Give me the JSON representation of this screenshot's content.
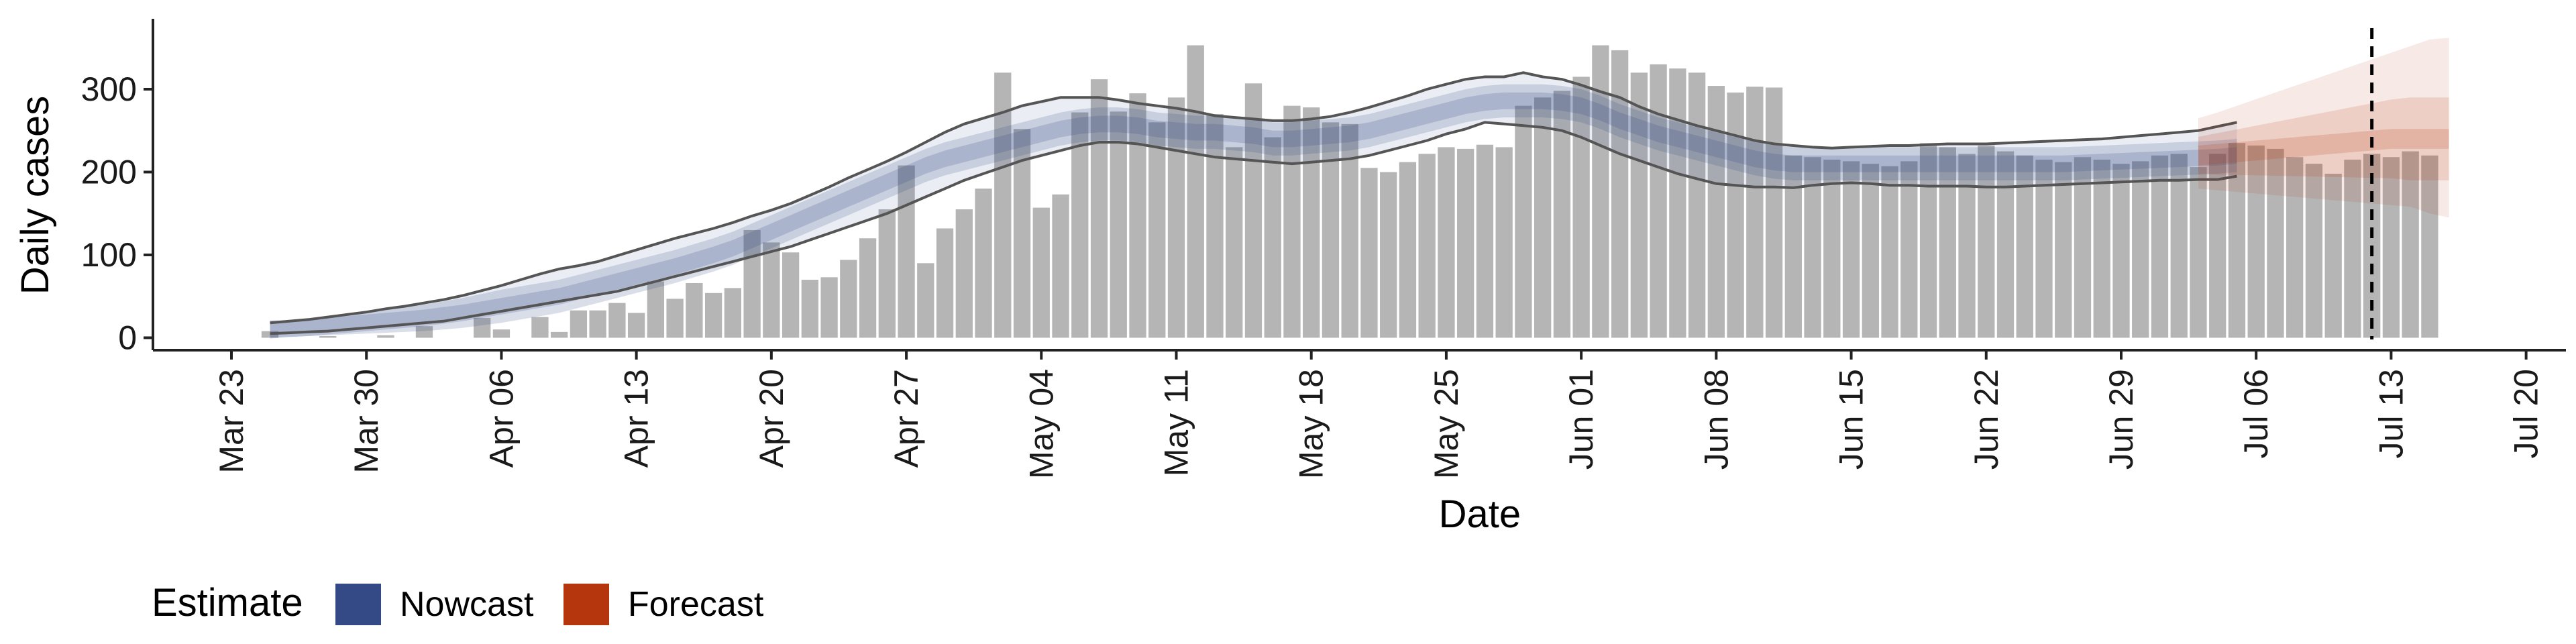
{
  "chart_data": {
    "type": "bar",
    "xlabel": "Date",
    "ylabel": "Daily cases",
    "x_axis": {
      "ticks": [
        "Mar 23",
        "Mar 30",
        "Apr 06",
        "Apr 13",
        "Apr 20",
        "Apr 27",
        "May 04",
        "May 11",
        "May 18",
        "May 25",
        "Jun 01",
        "Jun 08",
        "Jun 15",
        "Jun 22",
        "Jun 29",
        "Jul 06",
        "Jul 13",
        "Jul 20"
      ],
      "range_days_from_mar23": [
        0,
        120
      ]
    },
    "y_axis": {
      "ticks": [
        0,
        100,
        200,
        300
      ],
      "ylim": [
        -15,
        385
      ]
    },
    "legend": {
      "title": "Estimate",
      "position": "bottom-left",
      "entries": [
        {
          "label": "Nowcast",
          "color": "#334a87"
        },
        {
          "label": "Forecast",
          "color": "#b5350c"
        }
      ]
    },
    "reference_line": {
      "date": "Jul 12",
      "style": "dashed"
    },
    "colors": {
      "bars": "#b5b5b5",
      "nowcast_band": "#334a87",
      "forecast_band": "#b5350c",
      "outer_lines": "#555555",
      "axis": "#222222"
    },
    "observed_cases": {
      "start_date": "Mar 25",
      "values": [
        8,
        0,
        0,
        2,
        0,
        0,
        3,
        0,
        14,
        0,
        0,
        24,
        10,
        0,
        25,
        7,
        33,
        33,
        42,
        30,
        68,
        47,
        66,
        54,
        60,
        130,
        115,
        103,
        70,
        73,
        94,
        120,
        155,
        208,
        90,
        132,
        155,
        180,
        320,
        252,
        157,
        173,
        272,
        312,
        273,
        295,
        260,
        290,
        353,
        270,
        230,
        307,
        242,
        280,
        278,
        260,
        258,
        205,
        200,
        212,
        222,
        230,
        228,
        233,
        230,
        280,
        290,
        298,
        315,
        353,
        347,
        320,
        330,
        325,
        320,
        304,
        296,
        303,
        302,
        220,
        218,
        215,
        213,
        210,
        207,
        213,
        235,
        230,
        222,
        232,
        225,
        220,
        215,
        212,
        218,
        215,
        210,
        213,
        220,
        222,
        206,
        222,
        235,
        232,
        228,
        218,
        210,
        198,
        215,
        222,
        218,
        225,
        220
      ]
    },
    "nowcast": {
      "start_date": "Mar 25",
      "median": [
        10,
        11,
        12,
        14,
        16,
        18,
        20,
        22,
        24,
        27,
        30,
        34,
        38,
        42,
        46,
        50,
        56,
        62,
        68,
        74,
        80,
        86,
        93,
        100,
        108,
        118,
        128,
        138,
        148,
        158,
        168,
        178,
        188,
        198,
        208,
        216,
        222,
        228,
        234,
        240,
        246,
        252,
        256,
        258,
        258,
        256,
        252,
        250,
        248,
        248,
        246,
        244,
        240,
        240,
        242,
        244,
        246,
        250,
        256,
        262,
        268,
        274,
        280,
        284,
        286,
        286,
        286,
        284,
        280,
        272,
        262,
        254,
        246,
        240,
        234,
        228,
        222,
        216,
        212,
        210,
        210,
        210,
        210,
        210,
        210,
        210,
        210,
        210,
        210,
        210,
        210,
        210,
        210,
        210,
        211,
        212,
        213,
        214,
        215,
        216,
        217,
        218,
        220
      ],
      "band50": [
        22,
        20,
        20,
        22,
        24,
        26,
        28,
        30,
        32,
        34,
        36,
        38,
        40,
        40,
        40,
        40,
        40,
        40,
        40,
        40,
        40,
        40,
        40,
        40,
        40,
        40,
        40,
        40,
        40,
        40,
        40,
        40,
        40,
        40,
        40,
        40,
        40,
        40,
        40,
        40,
        40,
        40,
        40,
        40,
        40,
        40,
        40,
        40,
        40,
        40,
        40,
        40,
        40,
        40,
        40,
        40,
        40,
        40,
        40,
        40,
        40,
        40,
        40,
        40,
        40,
        40,
        40,
        40,
        40,
        40,
        40,
        40,
        40,
        40,
        40,
        40,
        40,
        40,
        40,
        40,
        40,
        40,
        40,
        40,
        40,
        40,
        40,
        40,
        40,
        40,
        40,
        40,
        40,
        40,
        40,
        40,
        40,
        40,
        40,
        40,
        40,
        40,
        40
      ],
      "upper90": [
        18,
        20,
        22,
        25,
        28,
        31,
        35,
        38,
        42,
        46,
        51,
        57,
        63,
        70,
        77,
        83,
        87,
        92,
        99,
        106,
        113,
        120,
        126,
        132,
        139,
        147,
        154,
        162,
        172,
        182,
        193,
        203,
        213,
        224,
        236,
        248,
        258,
        265,
        272,
        280,
        285,
        290,
        290,
        290,
        287,
        283,
        280,
        277,
        273,
        268,
        266,
        264,
        262,
        262,
        264,
        267,
        272,
        278,
        285,
        292,
        300,
        306,
        312,
        315,
        315,
        320,
        315,
        312,
        305,
        297,
        290,
        279,
        270,
        263,
        256,
        250,
        244,
        238,
        234,
        232,
        230,
        229,
        230,
        231,
        232,
        232,
        233,
        234,
        234,
        234,
        235,
        236,
        237,
        238,
        239,
        240,
        242,
        244,
        246,
        248,
        250,
        255,
        260
      ],
      "lower90": [
        5,
        6,
        7,
        8,
        10,
        12,
        14,
        16,
        18,
        20,
        24,
        28,
        32,
        36,
        40,
        44,
        48,
        52,
        56,
        62,
        68,
        74,
        80,
        86,
        92,
        98,
        104,
        110,
        118,
        126,
        134,
        142,
        150,
        160,
        170,
        180,
        190,
        198,
        206,
        214,
        220,
        226,
        232,
        236,
        236,
        234,
        230,
        226,
        222,
        218,
        216,
        214,
        212,
        210,
        212,
        214,
        216,
        220,
        226,
        232,
        238,
        246,
        252,
        260,
        258,
        256,
        254,
        250,
        242,
        232,
        222,
        214,
        206,
        198,
        192,
        186,
        184,
        182,
        182,
        181,
        184,
        186,
        187,
        186,
        184,
        184,
        183,
        183,
        183,
        182,
        182,
        183,
        184,
        185,
        186,
        187,
        188,
        189,
        190,
        190,
        191,
        191,
        195
      ]
    },
    "forecast": {
      "start_date": "Jul 03",
      "median": [
        220,
        222,
        224,
        226,
        228,
        230,
        232,
        234,
        236,
        238,
        240,
        240,
        240,
        240
      ],
      "band50": [
        45,
        50,
        55,
        60,
        65,
        70,
        75,
        80,
        85,
        90,
        95,
        100,
        100,
        100
      ],
      "upper90": [
        265,
        272,
        280,
        288,
        296,
        304,
        312,
        320,
        328,
        336,
        344,
        352,
        360,
        362
      ],
      "lower90": [
        180,
        178,
        176,
        174,
        172,
        170,
        168,
        166,
        164,
        162,
        160,
        158,
        150,
        145
      ]
    }
  }
}
